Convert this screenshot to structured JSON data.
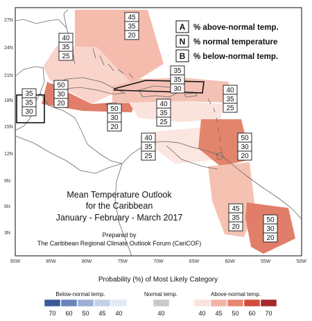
{
  "map": {
    "title_lines": [
      "Mean Temperature Outlook",
      "for the Caribbean",
      "January - February - March 2017"
    ],
    "credit_lines": [
      "Prepared by",
      "The Caribbean Regional Climate Outlook Forum (CariCOF)"
    ],
    "lat_labels": [
      "27N",
      "24N",
      "21N",
      "18N",
      "15N",
      "12N",
      "9N",
      "6N",
      "3N"
    ],
    "lon_labels": [
      "90W",
      "85W",
      "80W",
      "75W",
      "70W",
      "65W",
      "60W",
      "55W",
      "50W"
    ]
  },
  "legend": [
    {
      "key": "A",
      "text": "% above-normal temp."
    },
    {
      "key": "N",
      "text": "% normal temperature"
    },
    {
      "key": "B",
      "text": "% below-normal temp."
    }
  ],
  "probability_boxes": [
    {
      "values": [
        "45",
        "35",
        "20"
      ]
    },
    {
      "values": [
        "40",
        "35",
        "25"
      ]
    },
    {
      "values": [
        "50",
        "30",
        "20"
      ]
    },
    {
      "values": [
        "35",
        "35",
        "30"
      ]
    },
    {
      "values": [
        "35",
        "35",
        "30"
      ]
    },
    {
      "values": [
        "50",
        "30",
        "20"
      ]
    },
    {
      "values": [
        "40",
        "35",
        "25"
      ]
    },
    {
      "values": [
        "40",
        "35",
        "25"
      ]
    },
    {
      "values": [
        "40",
        "35",
        "25"
      ]
    },
    {
      "values": [
        "50",
        "30",
        "20"
      ]
    },
    {
      "values": [
        "45",
        "35",
        "20"
      ]
    },
    {
      "values": [
        "50",
        "30",
        "20"
      ]
    }
  ],
  "scale": {
    "title": "Probability (%) of Most Likely Category",
    "below": {
      "label": "Below-normal temp.",
      "numbers": [
        "70",
        "60",
        "50",
        "45",
        "40"
      ],
      "colors": [
        "#3c5a9a",
        "#6a85bd",
        "#9cb0d6",
        "#c2d0e8",
        "#e2eaf5"
      ]
    },
    "normal": {
      "label": "Normal temp.",
      "numbers": [
        "40"
      ],
      "colors": [
        "#c9c9c9"
      ]
    },
    "above": {
      "label": "Above-normal temp.",
      "numbers": [
        "40",
        "45",
        "50",
        "60",
        "70"
      ],
      "colors": [
        "#fbe3dd",
        "#f3b4a6",
        "#e88672",
        "#d24c3c",
        "#a8282b"
      ]
    }
  },
  "colors": {
    "above_40": "#fbe3dd",
    "above_45": "#f3b4a6",
    "above_50": "#e88672",
    "coast": "#666666",
    "frame": "#333333"
  }
}
